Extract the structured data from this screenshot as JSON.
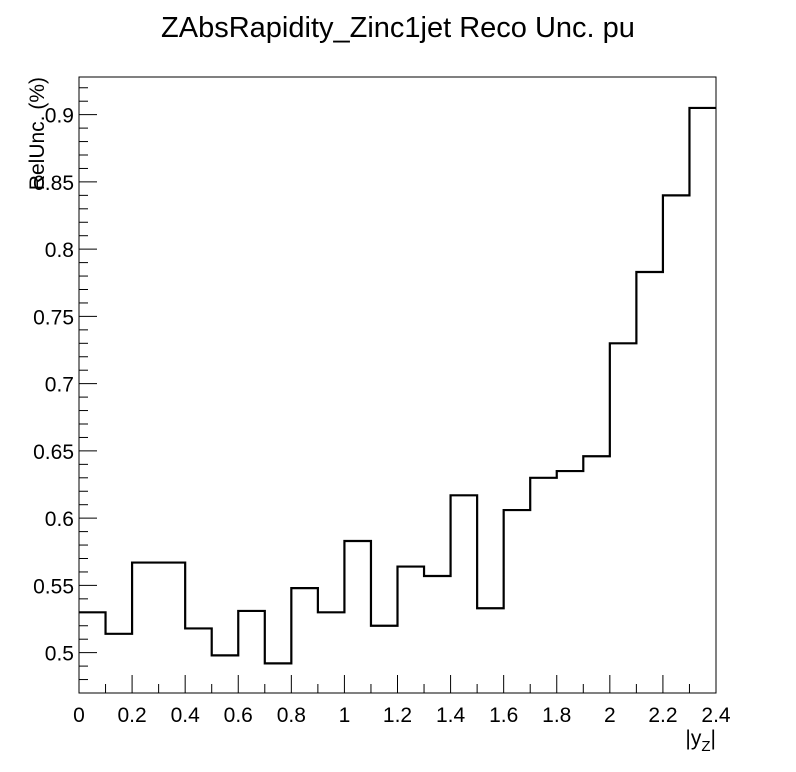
{
  "chart_data": {
    "type": "line",
    "style": "step-histogram",
    "title": "ZAbsRapidity_Zinc1jet Reco Unc. pu",
    "xlabel_text": "|y",
    "xlabel_subscript": "Z",
    "xlabel_close": "|",
    "ylabel": "RelUnc. (%)",
    "xlim": [
      0,
      2.4
    ],
    "ylim": [
      0.47,
      0.928
    ],
    "x_ticks": [
      "0",
      "0.2",
      "0.4",
      "0.6",
      "0.8",
      "1",
      "1.2",
      "1.4",
      "1.6",
      "1.8",
      "2",
      "2.2",
      "2.4"
    ],
    "y_ticks": [
      "0.5",
      "0.55",
      "0.6",
      "0.65",
      "0.7",
      "0.75",
      "0.8",
      "0.85",
      "0.9"
    ],
    "bin_edges": [
      0,
      0.1,
      0.2,
      0.3,
      0.4,
      0.5,
      0.6,
      0.7,
      0.8,
      0.9,
      1.0,
      1.1,
      1.2,
      1.3,
      1.4,
      1.5,
      1.6,
      1.7,
      1.8,
      1.9,
      2.0,
      2.1,
      2.2,
      2.3,
      2.4
    ],
    "values": [
      0.53,
      0.514,
      0.567,
      0.567,
      0.518,
      0.498,
      0.531,
      0.492,
      0.548,
      0.53,
      0.583,
      0.52,
      0.564,
      0.557,
      0.617,
      0.533,
      0.606,
      0.63,
      0.635,
      0.646,
      0.73,
      0.783,
      0.84,
      0.905
    ],
    "grid": false,
    "line_color": "#000000"
  }
}
